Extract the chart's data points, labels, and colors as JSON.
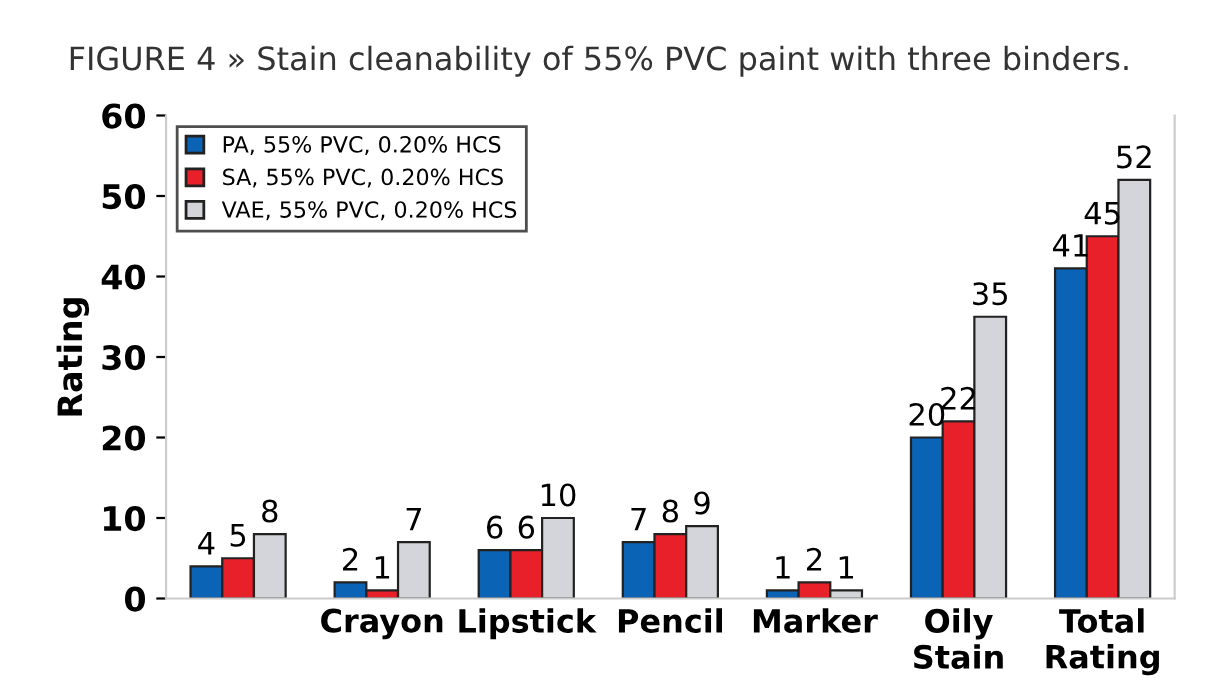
{
  "chart_data": {
    "type": "bar",
    "title": "FIGURE 4 » Stain cleanability of 55% PVC paint with three binders.",
    "ylabel": "Rating",
    "categories": [
      null,
      "Crayon",
      "Lipstick",
      "Pencil",
      "Marker",
      "Oily\nStain",
      "Total\nRating"
    ],
    "series": [
      {
        "name": "PA, 55% PVC, 0.20% HCS",
        "color": "#0b63b5",
        "values": [
          4,
          2,
          6,
          7,
          1,
          20,
          41
        ]
      },
      {
        "name": "SA, 55% PVC, 0.20% HCS",
        "color": "#e8202a",
        "values": [
          5,
          1,
          6,
          8,
          2,
          22,
          45
        ]
      },
      {
        "name": "VAE, 55% PVC, 0.20% HCS",
        "color": "#d4d5da",
        "values": [
          8,
          7,
          10,
          9,
          1,
          35,
          52
        ]
      }
    ],
    "ylim": [
      0,
      60
    ],
    "yticks": [
      0,
      10,
      20,
      30,
      40,
      50,
      60
    ],
    "data_labels": true,
    "legend": "top left",
    "grid": false
  }
}
